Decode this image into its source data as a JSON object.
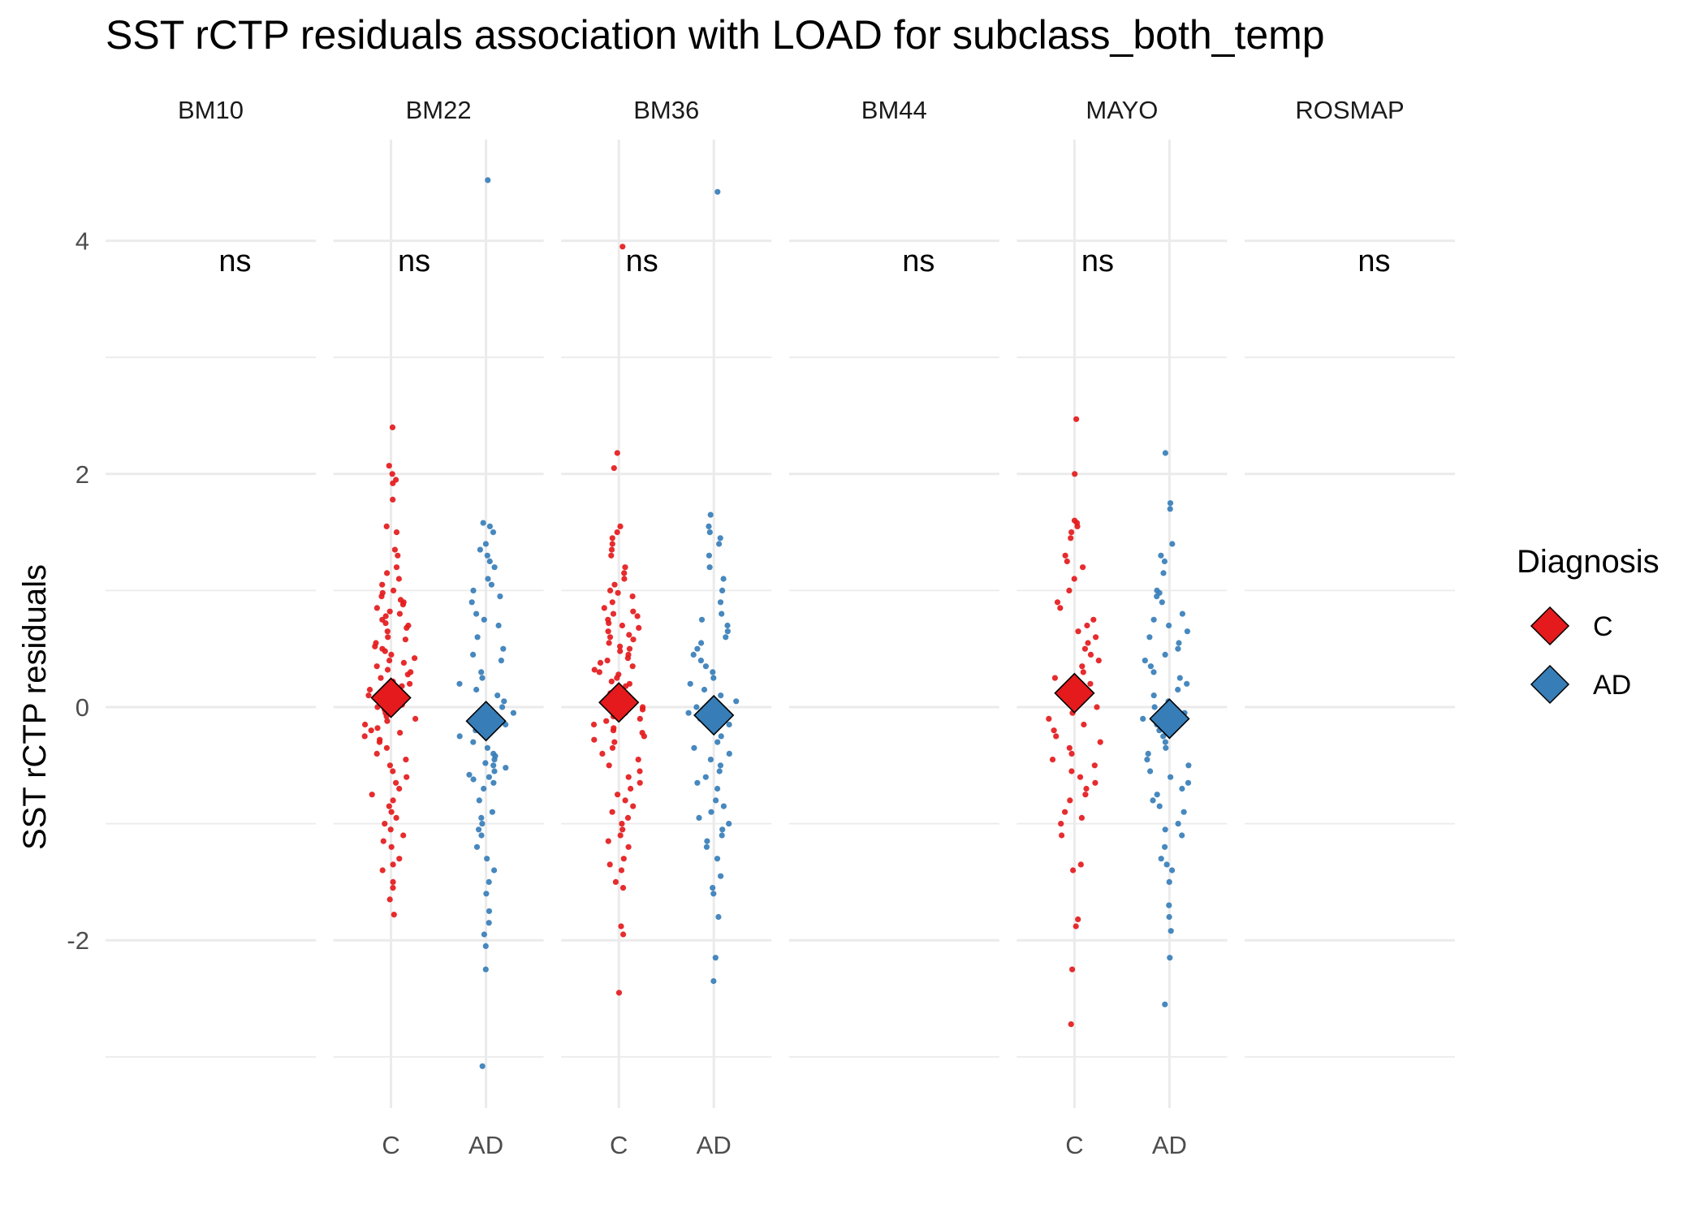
{
  "chart_data": {
    "type": "scatter",
    "title": "SST rCTP residuals association with LOAD for subclass_both_temp",
    "ylabel": "SST rCTP residuals",
    "xlabel": "",
    "ylim": [
      -3.4,
      4.8
    ],
    "y_ticks": [
      -2,
      0,
      2,
      4
    ],
    "y_tick_labels": [
      "-2",
      "0",
      "2",
      "4"
    ],
    "grid": true,
    "legend": {
      "title": "Diagnosis",
      "placement": "right"
    },
    "groups": [
      {
        "name": "C",
        "color": "#E41A1C"
      },
      {
        "name": "AD",
        "color": "#377EB8"
      }
    ],
    "mean_marker": "diamond",
    "panels": [
      {
        "label": "BM10",
        "categories": [],
        "annotation": "ns",
        "series": []
      },
      {
        "label": "BM22",
        "categories": [
          "C",
          "AD"
        ],
        "annotation": "ns",
        "series": [
          {
            "name": "C",
            "mean": 0.08,
            "values": [
              2.4,
              2.07,
              2.0,
              1.95,
              1.92,
              1.78,
              1.55,
              1.5,
              1.35,
              1.3,
              1.2,
              1.15,
              1.1,
              1.05,
              1.0,
              0.98,
              0.95,
              0.92,
              0.9,
              0.88,
              0.85,
              0.82,
              0.8,
              0.78,
              0.75,
              0.72,
              0.7,
              0.68,
              0.65,
              0.6,
              0.58,
              0.55,
              0.52,
              0.5,
              0.48,
              0.45,
              0.42,
              0.4,
              0.38,
              0.35,
              0.32,
              0.3,
              0.28,
              0.25,
              0.22,
              0.2,
              0.18,
              0.15,
              0.12,
              0.1,
              0.08,
              0.05,
              0.02,
              0.0,
              -0.02,
              -0.05,
              -0.08,
              -0.1,
              -0.12,
              -0.15,
              -0.18,
              -0.2,
              -0.22,
              -0.25,
              -0.28,
              -0.3,
              -0.35,
              -0.4,
              -0.45,
              -0.5,
              -0.55,
              -0.6,
              -0.65,
              -0.7,
              -0.75,
              -0.8,
              -0.85,
              -0.9,
              -0.95,
              -1.0,
              -1.05,
              -1.1,
              -1.15,
              -1.2,
              -1.3,
              -1.35,
              -1.4,
              -1.5,
              -1.55,
              -1.65,
              -1.78
            ]
          },
          {
            "name": "AD",
            "mean": -0.12,
            "values": [
              4.52,
              1.58,
              1.55,
              1.5,
              1.4,
              1.35,
              1.3,
              1.25,
              1.2,
              1.1,
              1.05,
              1.0,
              0.95,
              0.9,
              0.8,
              0.75,
              0.7,
              0.6,
              0.5,
              0.45,
              0.4,
              0.3,
              0.25,
              0.2,
              0.15,
              0.1,
              0.05,
              0.0,
              -0.05,
              -0.1,
              -0.15,
              -0.2,
              -0.25,
              -0.3,
              -0.35,
              -0.4,
              -0.42,
              -0.45,
              -0.48,
              -0.5,
              -0.52,
              -0.55,
              -0.58,
              -0.6,
              -0.62,
              -0.65,
              -0.7,
              -0.8,
              -0.9,
              -0.95,
              -1.0,
              -1.05,
              -1.1,
              -1.2,
              -1.3,
              -1.4,
              -1.5,
              -1.6,
              -1.75,
              -1.85,
              -1.95,
              -2.05,
              -2.25,
              -3.08
            ]
          }
        ]
      },
      {
        "label": "BM36",
        "categories": [
          "C",
          "AD"
        ],
        "annotation": "ns",
        "series": [
          {
            "name": "C",
            "mean": 0.04,
            "values": [
              3.95,
              2.18,
              2.05,
              1.55,
              1.5,
              1.45,
              1.4,
              1.35,
              1.3,
              1.2,
              1.15,
              1.1,
              1.05,
              1.0,
              0.98,
              0.95,
              0.9,
              0.85,
              0.82,
              0.8,
              0.78,
              0.75,
              0.72,
              0.7,
              0.68,
              0.65,
              0.62,
              0.6,
              0.58,
              0.55,
              0.52,
              0.5,
              0.48,
              0.45,
              0.42,
              0.4,
              0.38,
              0.35,
              0.32,
              0.3,
              0.28,
              0.25,
              0.22,
              0.2,
              0.18,
              0.15,
              0.12,
              0.1,
              0.08,
              0.05,
              0.02,
              0.0,
              -0.02,
              -0.05,
              -0.08,
              -0.1,
              -0.12,
              -0.15,
              -0.18,
              -0.2,
              -0.22,
              -0.25,
              -0.28,
              -0.3,
              -0.35,
              -0.4,
              -0.45,
              -0.5,
              -0.55,
              -0.6,
              -0.65,
              -0.7,
              -0.75,
              -0.8,
              -0.85,
              -0.9,
              -0.95,
              -1.0,
              -1.05,
              -1.1,
              -1.15,
              -1.2,
              -1.3,
              -1.35,
              -1.4,
              -1.5,
              -1.55,
              -1.88,
              -1.95,
              -2.45
            ]
          },
          {
            "name": "AD",
            "mean": -0.07,
            "values": [
              4.42,
              1.65,
              1.55,
              1.5,
              1.45,
              1.4,
              1.3,
              1.2,
              1.1,
              1.0,
              0.9,
              0.8,
              0.75,
              0.7,
              0.65,
              0.6,
              0.55,
              0.5,
              0.45,
              0.4,
              0.35,
              0.3,
              0.25,
              0.2,
              0.15,
              0.1,
              0.05,
              0.0,
              -0.05,
              -0.1,
              -0.15,
              -0.2,
              -0.25,
              -0.3,
              -0.35,
              -0.4,
              -0.45,
              -0.5,
              -0.55,
              -0.6,
              -0.65,
              -0.7,
              -0.8,
              -0.85,
              -0.9,
              -0.95,
              -1.0,
              -1.05,
              -1.1,
              -1.15,
              -1.2,
              -1.3,
              -1.45,
              -1.55,
              -1.6,
              -1.8,
              -2.15,
              -2.35
            ]
          }
        ]
      },
      {
        "label": "BM44",
        "categories": [],
        "annotation": "ns",
        "series": []
      },
      {
        "label": "MAYO",
        "categories": [
          "C",
          "AD"
        ],
        "annotation": "ns",
        "series": [
          {
            "name": "C",
            "mean": 0.12,
            "values": [
              2.47,
              2.0,
              1.6,
              1.58,
              1.55,
              1.5,
              1.45,
              1.3,
              1.25,
              1.2,
              1.1,
              1.0,
              0.9,
              0.85,
              0.75,
              0.7,
              0.65,
              0.6,
              0.55,
              0.5,
              0.45,
              0.4,
              0.35,
              0.3,
              0.25,
              0.2,
              0.15,
              0.1,
              0.05,
              0.0,
              -0.05,
              -0.1,
              -0.15,
              -0.2,
              -0.25,
              -0.3,
              -0.35,
              -0.4,
              -0.45,
              -0.5,
              -0.55,
              -0.6,
              -0.65,
              -0.7,
              -0.75,
              -0.8,
              -0.9,
              -0.95,
              -1.0,
              -1.1,
              -1.35,
              -1.4,
              -1.82,
              -1.88,
              -2.25,
              -2.72
            ]
          },
          {
            "name": "AD",
            "mean": -0.1,
            "values": [
              2.18,
              1.75,
              1.7,
              1.4,
              1.3,
              1.25,
              1.15,
              1.0,
              0.98,
              0.95,
              0.9,
              0.8,
              0.75,
              0.7,
              0.65,
              0.6,
              0.55,
              0.5,
              0.45,
              0.4,
              0.35,
              0.3,
              0.25,
              0.2,
              0.15,
              0.1,
              0.05,
              0.0,
              -0.05,
              -0.1,
              -0.15,
              -0.2,
              -0.25,
              -0.3,
              -0.35,
              -0.4,
              -0.45,
              -0.5,
              -0.55,
              -0.6,
              -0.65,
              -0.7,
              -0.75,
              -0.8,
              -0.85,
              -0.9,
              -1.0,
              -1.05,
              -1.1,
              -1.2,
              -1.3,
              -1.35,
              -1.4,
              -1.5,
              -1.7,
              -1.8,
              -1.92,
              -2.15,
              -2.55
            ]
          }
        ]
      },
      {
        "label": "ROSMAP",
        "categories": [],
        "annotation": "ns",
        "series": []
      }
    ]
  }
}
